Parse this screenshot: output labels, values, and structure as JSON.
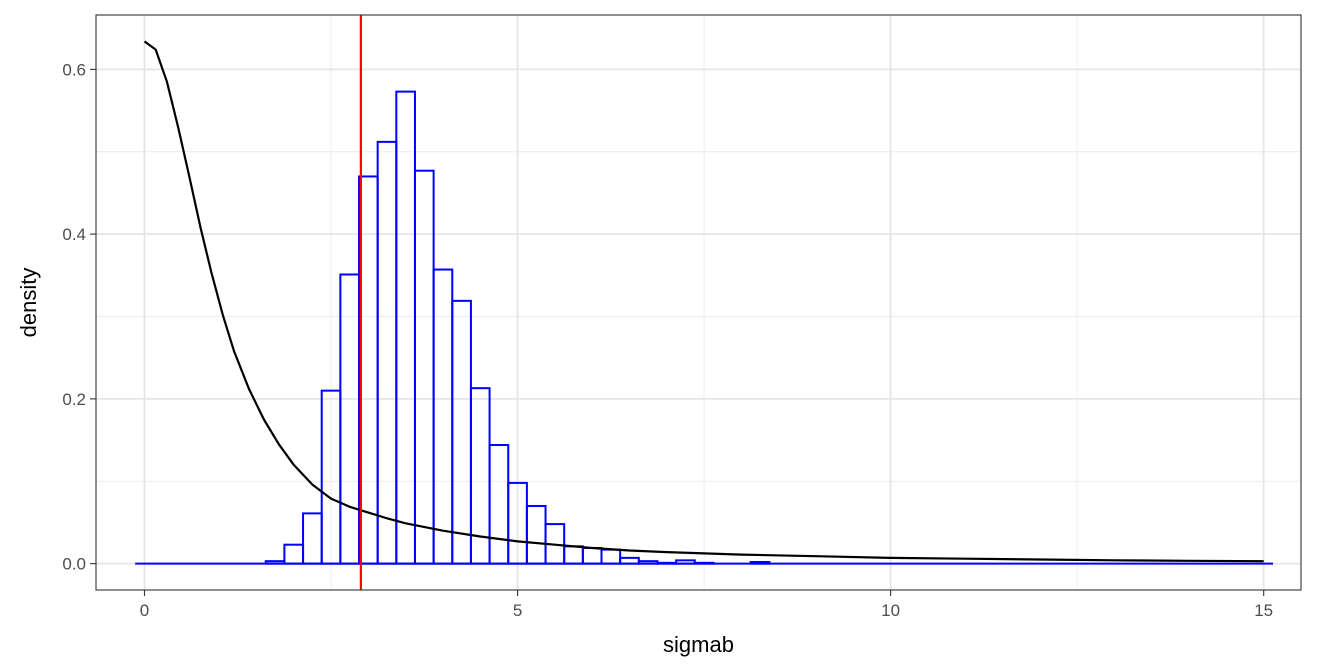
{
  "chart_data": {
    "type": "histogram",
    "xlabel": "sigmab",
    "ylabel": "density",
    "xlim": [
      -0.65,
      15.5
    ],
    "ylim": [
      -0.032,
      0.666
    ],
    "x_ticks": [
      0,
      5,
      10,
      15
    ],
    "x_minor_ticks": [
      2.5,
      7.5,
      12.5
    ],
    "y_ticks": [
      0.0,
      0.2,
      0.4,
      0.6
    ],
    "y_minor_ticks": [
      0.1,
      0.3,
      0.5
    ],
    "x_tick_labels": [
      "0",
      "5",
      "10",
      "15"
    ],
    "y_tick_labels": [
      "0.0",
      "0.2",
      "0.4",
      "0.6"
    ],
    "grid": true,
    "theme": "bw",
    "histogram": {
      "color": "#0000ff",
      "bin_width": 0.25,
      "range": [
        -0.125,
        15.125
      ],
      "bins": [
        {
          "x": 1.75,
          "density": 0.003
        },
        {
          "x": 2.0,
          "density": 0.023
        },
        {
          "x": 2.25,
          "density": 0.061
        },
        {
          "x": 2.5,
          "density": 0.21
        },
        {
          "x": 2.75,
          "density": 0.351
        },
        {
          "x": 3.0,
          "density": 0.47
        },
        {
          "x": 3.25,
          "density": 0.512
        },
        {
          "x": 3.5,
          "density": 0.573
        },
        {
          "x": 3.75,
          "density": 0.477
        },
        {
          "x": 4.0,
          "density": 0.357
        },
        {
          "x": 4.25,
          "density": 0.319
        },
        {
          "x": 4.5,
          "density": 0.213
        },
        {
          "x": 4.75,
          "density": 0.144
        },
        {
          "x": 5.0,
          "density": 0.098
        },
        {
          "x": 5.25,
          "density": 0.07
        },
        {
          "x": 5.5,
          "density": 0.048
        },
        {
          "x": 5.75,
          "density": 0.021
        },
        {
          "x": 6.0,
          "density": 0.019
        },
        {
          "x": 6.25,
          "density": 0.017
        },
        {
          "x": 6.5,
          "density": 0.007
        },
        {
          "x": 6.75,
          "density": 0.003
        },
        {
          "x": 7.0,
          "density": 0.001
        },
        {
          "x": 7.25,
          "density": 0.004
        },
        {
          "x": 7.5,
          "density": 0.001
        },
        {
          "x": 8.25,
          "density": 0.002
        }
      ]
    },
    "density_curve": {
      "color": "#000000",
      "points": [
        [
          0.0,
          0.634
        ],
        [
          0.15,
          0.624
        ],
        [
          0.3,
          0.585
        ],
        [
          0.45,
          0.53
        ],
        [
          0.6,
          0.47
        ],
        [
          0.75,
          0.408
        ],
        [
          0.9,
          0.352
        ],
        [
          1.05,
          0.302
        ],
        [
          1.2,
          0.258
        ],
        [
          1.4,
          0.212
        ],
        [
          1.6,
          0.175
        ],
        [
          1.8,
          0.145
        ],
        [
          2.0,
          0.12
        ],
        [
          2.25,
          0.096
        ],
        [
          2.5,
          0.079
        ],
        [
          2.75,
          0.069
        ],
        [
          3.0,
          0.062
        ],
        [
          3.25,
          0.055
        ],
        [
          3.5,
          0.049
        ],
        [
          4.0,
          0.04
        ],
        [
          4.5,
          0.033
        ],
        [
          5.0,
          0.027
        ],
        [
          5.5,
          0.023
        ],
        [
          6.0,
          0.019
        ],
        [
          6.5,
          0.016
        ],
        [
          7.0,
          0.014
        ],
        [
          8.0,
          0.011
        ],
        [
          9.0,
          0.009
        ],
        [
          10.0,
          0.007
        ],
        [
          11.0,
          0.006
        ],
        [
          12.0,
          0.005
        ],
        [
          13.0,
          0.004
        ],
        [
          14.0,
          0.0035
        ],
        [
          15.0,
          0.003
        ]
      ]
    },
    "vline": {
      "x": 2.9,
      "color": "#ff0000"
    }
  }
}
